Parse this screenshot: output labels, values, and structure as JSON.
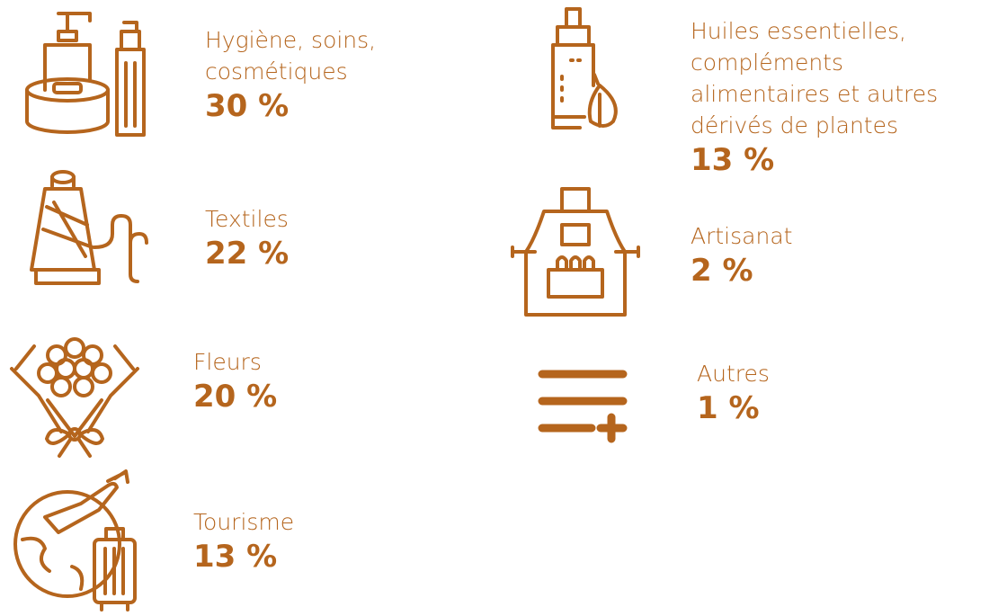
{
  "items": [
    {
      "label": [
        "Hygiène, soins,",
        "cosmétiques"
      ],
      "value": "30 %"
    },
    {
      "label": [
        "Textiles"
      ],
      "value": "22 %"
    },
    {
      "label": [
        "Fleurs"
      ],
      "value": "20 %"
    },
    {
      "label": [
        "Tourisme"
      ],
      "value": "13 %"
    },
    {
      "label": [
        "Huiles essentielles,",
        "compléments",
        "alimentaires et autres",
        "dérivés de plantes"
      ],
      "value": "13 %"
    },
    {
      "label": [
        "Artisanat"
      ],
      "value": "2 %"
    },
    {
      "label": [
        "Autres"
      ],
      "value": "1 %"
    }
  ]
}
